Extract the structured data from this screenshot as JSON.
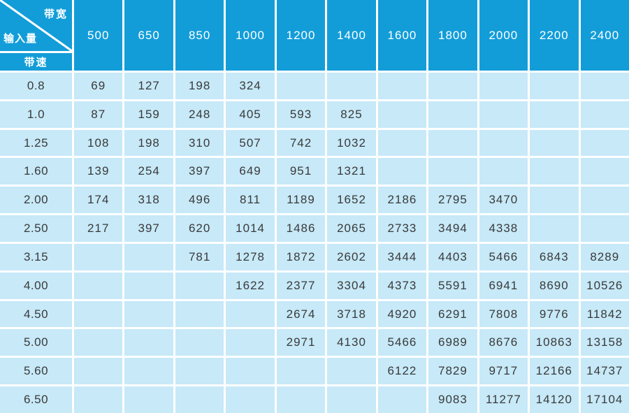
{
  "colors": {
    "header_bg": "#129DD9",
    "cell_bg": "#C7E9F8",
    "grid": "#FFFFFF",
    "text_dark": "#3A3A3A",
    "text_light": "#FFFFFF"
  },
  "chart_data": {
    "type": "table",
    "corner": {
      "top_right_label": "带宽",
      "bottom_left_label": "输入量",
      "sub_label": "带速"
    },
    "columns": [
      "500",
      "650",
      "850",
      "1000",
      "1200",
      "1400",
      "1600",
      "1800",
      "2000",
      "2200",
      "2400"
    ],
    "rows": [
      {
        "speed": "0.8",
        "values": [
          69,
          127,
          198,
          324,
          null,
          null,
          null,
          null,
          null,
          null,
          null
        ]
      },
      {
        "speed": "1.0",
        "values": [
          87,
          159,
          248,
          405,
          593,
          825,
          null,
          null,
          null,
          null,
          null
        ]
      },
      {
        "speed": "1.25",
        "values": [
          108,
          198,
          310,
          507,
          742,
          1032,
          null,
          null,
          null,
          null,
          null
        ]
      },
      {
        "speed": "1.60",
        "values": [
          139,
          254,
          397,
          649,
          951,
          1321,
          null,
          null,
          null,
          null,
          null
        ]
      },
      {
        "speed": "2.00",
        "values": [
          174,
          318,
          496,
          811,
          1189,
          1652,
          2186,
          2795,
          3470,
          null,
          null
        ]
      },
      {
        "speed": "2.50",
        "values": [
          217,
          397,
          620,
          1014,
          1486,
          2065,
          2733,
          3494,
          4338,
          null,
          null
        ]
      },
      {
        "speed": "3.15",
        "values": [
          null,
          null,
          781,
          1278,
          1872,
          2602,
          3444,
          4403,
          5466,
          6843,
          8289
        ]
      },
      {
        "speed": "4.00",
        "values": [
          null,
          null,
          null,
          1622,
          2377,
          3304,
          4373,
          5591,
          6941,
          8690,
          10526
        ]
      },
      {
        "speed": "4.50",
        "values": [
          null,
          null,
          null,
          null,
          2674,
          3718,
          4920,
          6291,
          7808,
          9776,
          11842
        ]
      },
      {
        "speed": "5.00",
        "values": [
          null,
          null,
          null,
          null,
          2971,
          4130,
          5466,
          6989,
          8676,
          10863,
          13158
        ]
      },
      {
        "speed": "5.60",
        "values": [
          null,
          null,
          null,
          null,
          null,
          null,
          6122,
          7829,
          9717,
          12166,
          14737
        ]
      },
      {
        "speed": "6.50",
        "values": [
          null,
          null,
          null,
          null,
          null,
          null,
          null,
          9083,
          11277,
          14120,
          17104
        ]
      }
    ]
  }
}
